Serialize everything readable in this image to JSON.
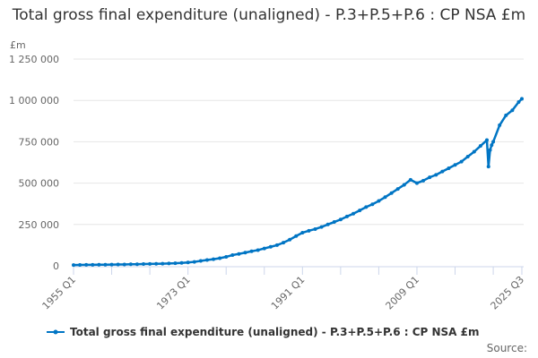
{
  "chart_data": {
    "type": "line",
    "title": "Total gross final expenditure (unaligned) - P.3+P.5+P.6 : CP NSA £m",
    "ylabel": "£m",
    "xlabel": "",
    "ylim": [
      0,
      1250000
    ],
    "yticks": [
      0,
      250000,
      500000,
      750000,
      1000000,
      1250000
    ],
    "ytick_labels": [
      "0",
      "250 000",
      "500 000",
      "750 000",
      "1 000 000",
      "1 250 000"
    ],
    "xtick_labels": [
      "1955 Q1",
      "1973 Q1",
      "1991 Q1",
      "2009 Q1",
      "2025 Q3"
    ],
    "grid": true,
    "legend_position": "bottom",
    "color": "#0075c4",
    "series": [
      {
        "name": "Total gross final expenditure (unaligned) - P.3+P.5+P.6 : CP NSA £m",
        "points": [
          [
            "1955 Q1",
            5000
          ],
          [
            "1956 Q1",
            5500
          ],
          [
            "1957 Q1",
            5800
          ],
          [
            "1958 Q1",
            6100
          ],
          [
            "1959 Q1",
            6500
          ],
          [
            "1960 Q1",
            7000
          ],
          [
            "1961 Q1",
            7500
          ],
          [
            "1962 Q1",
            7900
          ],
          [
            "1963 Q1",
            8400
          ],
          [
            "1964 Q1",
            9200
          ],
          [
            "1965 Q1",
            9800
          ],
          [
            "1966 Q1",
            10500
          ],
          [
            "1967 Q1",
            11200
          ],
          [
            "1968 Q1",
            12000
          ],
          [
            "1969 Q1",
            12800
          ],
          [
            "1970 Q1",
            14000
          ],
          [
            "1971 Q1",
            15500
          ],
          [
            "1972 Q1",
            17500
          ],
          [
            "1973 Q1",
            20500
          ],
          [
            "1974 Q1",
            24000
          ],
          [
            "1975 Q1",
            30000
          ],
          [
            "1976 Q1",
            35000
          ],
          [
            "1977 Q1",
            40000
          ],
          [
            "1978 Q1",
            46000
          ],
          [
            "1979 Q1",
            54000
          ],
          [
            "1980 Q1",
            65000
          ],
          [
            "1981 Q1",
            72000
          ],
          [
            "1982 Q1",
            80000
          ],
          [
            "1983 Q1",
            88000
          ],
          [
            "1984 Q1",
            95000
          ],
          [
            "1985 Q1",
            105000
          ],
          [
            "1986 Q1",
            115000
          ],
          [
            "1987 Q1",
            125000
          ],
          [
            "1988 Q1",
            140000
          ],
          [
            "1989 Q1",
            158000
          ],
          [
            "1990 Q1",
            180000
          ],
          [
            "1991 Q1",
            200000
          ],
          [
            "1992 Q1",
            212000
          ],
          [
            "1993 Q1",
            222000
          ],
          [
            "1994 Q1",
            235000
          ],
          [
            "1995 Q1",
            250000
          ],
          [
            "1996 Q1",
            265000
          ],
          [
            "1997 Q1",
            280000
          ],
          [
            "1998 Q1",
            298000
          ],
          [
            "1999 Q1",
            315000
          ],
          [
            "2000 Q1",
            335000
          ],
          [
            "2001 Q1",
            355000
          ],
          [
            "2002 Q1",
            372000
          ],
          [
            "2003 Q1",
            392000
          ],
          [
            "2004 Q1",
            415000
          ],
          [
            "2005 Q1",
            440000
          ],
          [
            "2006 Q1",
            465000
          ],
          [
            "2007 Q1",
            490000
          ],
          [
            "2008 Q1",
            520000
          ],
          [
            "2009 Q1",
            500000
          ],
          [
            "2010 Q1",
            515000
          ],
          [
            "2011 Q1",
            535000
          ],
          [
            "2012 Q1",
            550000
          ],
          [
            "2013 Q1",
            570000
          ],
          [
            "2014 Q1",
            590000
          ],
          [
            "2015 Q1",
            610000
          ],
          [
            "2016 Q1",
            630000
          ],
          [
            "2017 Q1",
            660000
          ],
          [
            "2018 Q1",
            690000
          ],
          [
            "2019 Q1",
            725000
          ],
          [
            "2020 Q1",
            760000
          ],
          [
            "2020 Q2",
            600000
          ],
          [
            "2020 Q3",
            700000
          ],
          [
            "2020 Q4",
            730000
          ],
          [
            "2021 Q1",
            750000
          ],
          [
            "2022 Q1",
            850000
          ],
          [
            "2023 Q1",
            910000
          ],
          [
            "2024 Q1",
            940000
          ],
          [
            "2025 Q1",
            990000
          ],
          [
            "2025 Q3",
            1010000
          ]
        ]
      }
    ]
  },
  "source_label": "Source:"
}
